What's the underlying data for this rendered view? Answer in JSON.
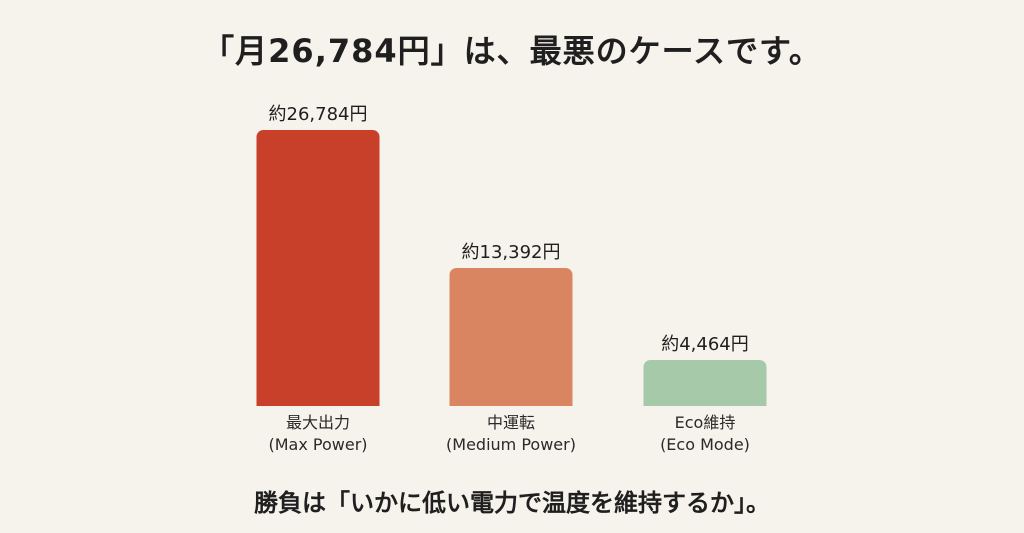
{
  "title": "「月26,784円」は、最悪のケースです。",
  "footer": "勝負は「いかに低い電力で温度を維持するか」。",
  "chart_data": {
    "type": "bar",
    "categories": [
      "最大出力 (Max Power)",
      "中運転 (Medium Power)",
      "Eco維持 (Eco Mode)"
    ],
    "category_lines": [
      [
        "最大出力",
        "(Max Power)"
      ],
      [
        "中運転",
        "(Medium Power)"
      ],
      [
        "Eco維持",
        "(Eco Mode)"
      ]
    ],
    "values": [
      26784,
      13392,
      4464
    ],
    "value_labels": [
      "約26,784円",
      "約13,392円",
      "約4,464円"
    ],
    "colors": [
      "#c8402a",
      "#d98561",
      "#a6c9a9"
    ],
    "ylim": [
      0,
      26784
    ],
    "grid": false,
    "legend": "none"
  }
}
